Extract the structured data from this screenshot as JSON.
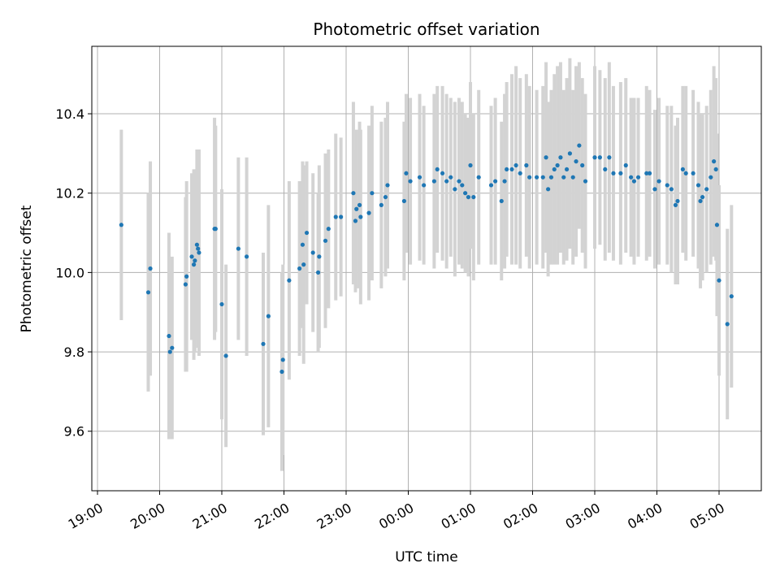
{
  "chart_data": {
    "type": "scatter",
    "title": "Photometric offset variation",
    "xlabel": "UTC time",
    "ylabel": "Photometric offset",
    "grid": true,
    "x_ticks": [
      "19:00",
      "20:00",
      "21:00",
      "22:00",
      "23:00",
      "00:00",
      "01:00",
      "02:00",
      "03:00",
      "04:00",
      "05:00"
    ],
    "xlim": [
      "19:00",
      "05:45"
    ],
    "ylim": [
      9.45,
      10.57
    ],
    "y_ticks": [
      9.6,
      9.8,
      10.0,
      10.2,
      10.4
    ],
    "colors": {
      "point": "#1f77b4",
      "errorbar": "#d3d3d3",
      "grid": "#b0b0b0"
    },
    "series": [
      {
        "points": [
          [
            "19:23",
            10.12,
            0.24
          ],
          [
            "19:49",
            9.95,
            0.25
          ],
          [
            "19:51",
            10.01,
            0.27
          ],
          [
            "20:09",
            9.84,
            0.26
          ],
          [
            "20:10",
            9.8,
            0.2
          ],
          [
            "20:12",
            9.81,
            0.23
          ],
          [
            "20:25",
            9.97,
            0.22
          ],
          [
            "20:26",
            9.99,
            0.24
          ],
          [
            "20:31",
            10.04,
            0.21
          ],
          [
            "20:33",
            10.02,
            0.24
          ],
          [
            "20:34",
            10.03,
            0.23
          ],
          [
            "20:36",
            10.07,
            0.24
          ],
          [
            "20:37",
            10.06,
            0.25
          ],
          [
            "20:38",
            10.05,
            0.26
          ],
          [
            "20:53",
            10.11,
            0.28
          ],
          [
            "20:54",
            10.11,
            0.26
          ],
          [
            "21:00",
            9.92,
            0.29
          ],
          [
            "21:04",
            9.79,
            0.23
          ],
          [
            "21:16",
            10.06,
            0.23
          ],
          [
            "21:24",
            10.04,
            0.25
          ],
          [
            "21:40",
            9.82,
            0.23
          ],
          [
            "21:45",
            9.89,
            0.28
          ],
          [
            "21:58",
            9.75,
            0.25
          ],
          [
            "21:59",
            9.78,
            0.24
          ],
          [
            "22:05",
            9.98,
            0.25
          ],
          [
            "22:15",
            10.01,
            0.22
          ],
          [
            "22:18",
            10.07,
            0.21
          ],
          [
            "22:19",
            10.02,
            0.25
          ],
          [
            "22:22",
            10.1,
            0.18
          ],
          [
            "22:28",
            10.05,
            0.2
          ],
          [
            "22:33",
            10.0,
            0.2
          ],
          [
            "22:34",
            10.04,
            0.23
          ],
          [
            "22:40",
            10.08,
            0.22
          ],
          [
            "22:43",
            10.11,
            0.2
          ],
          [
            "22:50",
            10.14,
            0.21
          ],
          [
            "22:55",
            10.14,
            0.2
          ],
          [
            "23:07",
            10.2,
            0.23
          ],
          [
            "23:09",
            10.13,
            0.18
          ],
          [
            "23:10",
            10.16,
            0.2
          ],
          [
            "23:13",
            10.17,
            0.21
          ],
          [
            "23:14",
            10.14,
            0.22
          ],
          [
            "23:22",
            10.15,
            0.22
          ],
          [
            "23:25",
            10.2,
            0.22
          ],
          [
            "23:34",
            10.17,
            0.21
          ],
          [
            "23:38",
            10.19,
            0.2
          ],
          [
            "23:40",
            10.22,
            0.21
          ],
          [
            "23:56",
            10.18,
            0.2
          ],
          [
            "23:58",
            10.25,
            0.2
          ],
          [
            "00:02",
            10.23,
            0.21
          ],
          [
            "00:11",
            10.24,
            0.21
          ],
          [
            "00:15",
            10.22,
            0.2
          ],
          [
            "00:25",
            10.23,
            0.22
          ],
          [
            "00:28",
            10.26,
            0.21
          ],
          [
            "00:33",
            10.25,
            0.22
          ],
          [
            "00:37",
            10.23,
            0.22
          ],
          [
            "00:41",
            10.24,
            0.2
          ],
          [
            "00:45",
            10.21,
            0.22
          ],
          [
            "00:49",
            10.23,
            0.21
          ],
          [
            "00:52",
            10.22,
            0.21
          ],
          [
            "00:55",
            10.2,
            0.2
          ],
          [
            "00:58",
            10.19,
            0.2
          ],
          [
            "01:00",
            10.27,
            0.21
          ],
          [
            "01:03",
            10.19,
            0.21
          ],
          [
            "01:08",
            10.24,
            0.22
          ],
          [
            "01:20",
            10.22,
            0.2
          ],
          [
            "01:24",
            10.23,
            0.21
          ],
          [
            "01:30",
            10.18,
            0.2
          ],
          [
            "01:33",
            10.23,
            0.22
          ],
          [
            "01:35",
            10.26,
            0.22
          ],
          [
            "01:40",
            10.26,
            0.24
          ],
          [
            "01:44",
            10.27,
            0.25
          ],
          [
            "01:48",
            10.25,
            0.24
          ],
          [
            "01:54",
            10.27,
            0.23
          ],
          [
            "01:57",
            10.24,
            0.23
          ],
          [
            "02:04",
            10.24,
            0.22
          ],
          [
            "02:10",
            10.24,
            0.23
          ],
          [
            "02:13",
            10.29,
            0.24
          ],
          [
            "02:15",
            10.21,
            0.22
          ],
          [
            "02:18",
            10.24,
            0.22
          ],
          [
            "02:21",
            10.26,
            0.24
          ],
          [
            "02:24",
            10.27,
            0.25
          ],
          [
            "02:27",
            10.29,
            0.24
          ],
          [
            "02:30",
            10.24,
            0.22
          ],
          [
            "02:33",
            10.26,
            0.23
          ],
          [
            "02:36",
            10.3,
            0.24
          ],
          [
            "02:39",
            10.24,
            0.22
          ],
          [
            "02:42",
            10.28,
            0.24
          ],
          [
            "02:45",
            10.32,
            0.21
          ],
          [
            "02:48",
            10.27,
            0.22
          ],
          [
            "02:51",
            10.23,
            0.22
          ],
          [
            "03:00",
            10.29,
            0.23
          ],
          [
            "03:05",
            10.29,
            0.22
          ],
          [
            "03:10",
            10.26,
            0.23
          ],
          [
            "03:14",
            10.29,
            0.24
          ],
          [
            "03:18",
            10.25,
            0.22
          ],
          [
            "03:25",
            10.25,
            0.23
          ],
          [
            "03:30",
            10.27,
            0.22
          ],
          [
            "03:35",
            10.24,
            0.2
          ],
          [
            "03:38",
            10.23,
            0.21
          ],
          [
            "03:42",
            10.24,
            0.2
          ],
          [
            "03:50",
            10.25,
            0.22
          ],
          [
            "03:53",
            10.25,
            0.21
          ],
          [
            "03:58",
            10.21,
            0.2
          ],
          [
            "04:02",
            10.23,
            0.21
          ],
          [
            "04:10",
            10.22,
            0.2
          ],
          [
            "04:14",
            10.21,
            0.21
          ],
          [
            "04:18",
            10.17,
            0.2
          ],
          [
            "04:20",
            10.18,
            0.21
          ],
          [
            "04:25",
            10.26,
            0.21
          ],
          [
            "04:28",
            10.25,
            0.22
          ],
          [
            "04:35",
            10.25,
            0.21
          ],
          [
            "04:40",
            10.22,
            0.21
          ],
          [
            "04:42",
            10.18,
            0.22
          ],
          [
            "04:44",
            10.19,
            0.21
          ],
          [
            "04:48",
            10.21,
            0.21
          ],
          [
            "04:52",
            10.24,
            0.22
          ],
          [
            "04:55",
            10.28,
            0.24
          ],
          [
            "04:57",
            10.26,
            0.23
          ],
          [
            "04:58",
            10.12,
            0.23
          ],
          [
            "05:00",
            9.98,
            0.24
          ],
          [
            "05:08",
            9.87,
            0.24
          ],
          [
            "05:12",
            9.94,
            0.23
          ]
        ]
      }
    ]
  }
}
